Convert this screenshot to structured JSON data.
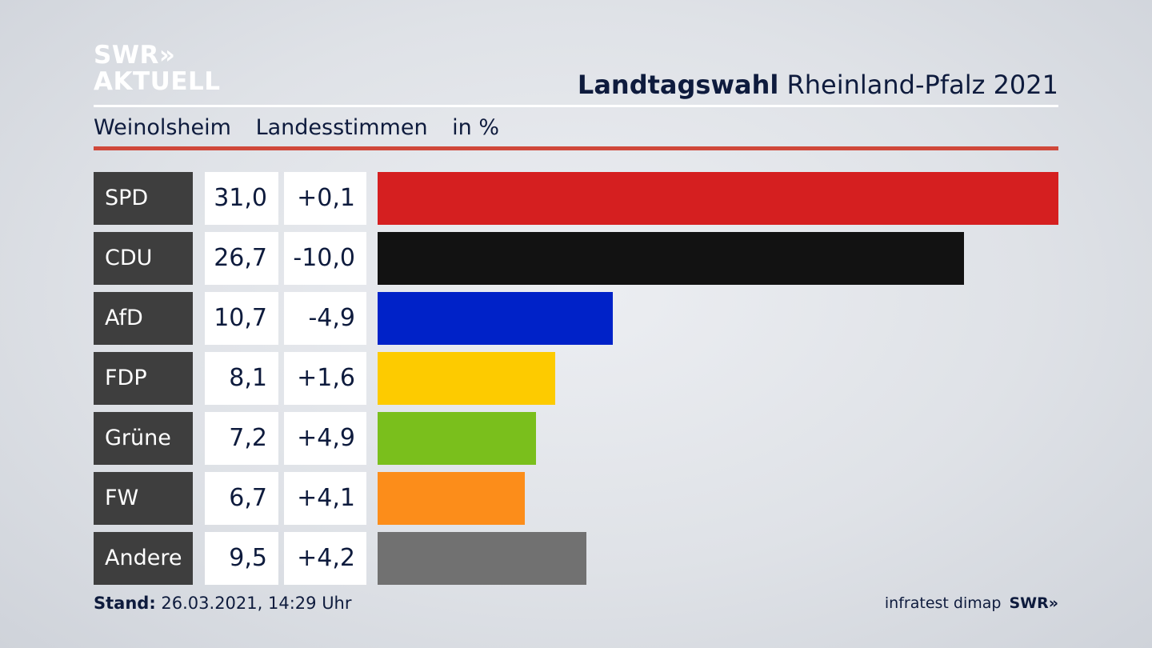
{
  "logo": {
    "line1": "SWR»",
    "line2": "AKTUELL"
  },
  "header": {
    "title_bold": "Landtagswahl",
    "title_rest": "Rheinland-Pfalz 2021"
  },
  "subtitle": {
    "place": "Weinolsheim",
    "type": "Landesstimmen",
    "unit": "in %"
  },
  "footer": {
    "stand_label": "Stand:",
    "stand_value": "26.03.2021, 14:29 Uhr",
    "source": "infratest dimap",
    "brand": "SWR»"
  },
  "chart_data": {
    "type": "bar",
    "orientation": "horizontal",
    "categories": [
      "SPD",
      "CDU",
      "AfD",
      "FDP",
      "Grüne",
      "FW",
      "Andere"
    ],
    "values": [
      31.0,
      26.7,
      10.7,
      8.1,
      7.2,
      6.7,
      9.5
    ],
    "value_labels": [
      "31,0",
      "26,7",
      "10,7",
      "8,1",
      "7,2",
      "6,7",
      "9,5"
    ],
    "diff_labels": [
      "+0,1",
      "-10,0",
      "-4,9",
      "+1,6",
      "+4,9",
      "+4,1",
      "+4,2"
    ],
    "colors": [
      "#d51f20",
      "#121212",
      "#0022c8",
      "#fdcb00",
      "#7abf1c",
      "#fc8d1a",
      "#717171"
    ],
    "xlim": [
      0,
      31.0
    ]
  }
}
